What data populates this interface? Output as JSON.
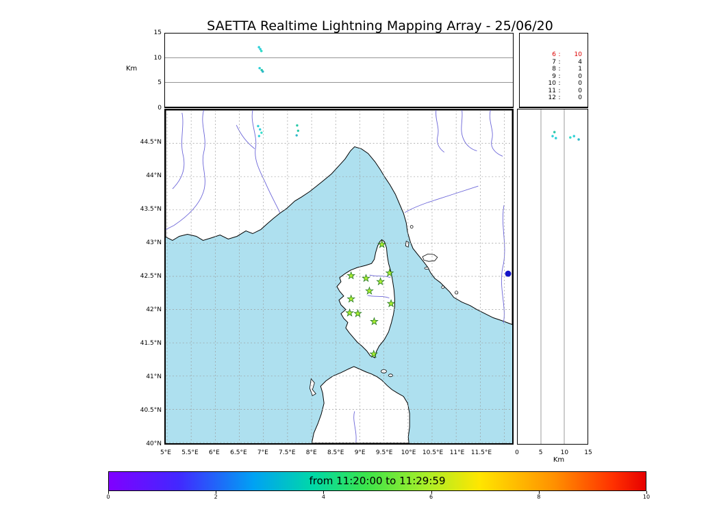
{
  "title": "SAETTA Realtime Lightning Mapping Array - 25/06/20",
  "colors": {
    "sea": "#aee0ef",
    "land": "#ffffff",
    "river": "#6a64d8",
    "station_fill": "#aaee33",
    "station_edge": "#227722",
    "highlight_red": "#dd0000",
    "extra_marker_blue": "#1414c8"
  },
  "chart_data": [
    {
      "type": "scatter",
      "panel": "altitude_vs_time",
      "ylabel": "Km",
      "ylim": [
        0,
        15
      ],
      "yticks": [
        15,
        10,
        5,
        0
      ],
      "gridlines_km": [
        5,
        10
      ],
      "points": [
        [
          0.27,
          12.2,
          "#2fd0d8"
        ],
        [
          0.274,
          11.8,
          "#2fd0d8"
        ],
        [
          0.277,
          11.4,
          "#35dcc8"
        ],
        [
          0.272,
          7.9,
          "#2fd0d8"
        ],
        [
          0.278,
          7.5,
          "#28c8a8"
        ],
        [
          0.281,
          7.2,
          "#30b8c8"
        ]
      ]
    },
    {
      "type": "table",
      "panel": "source_counts_by_min_stations",
      "description": "minimum contributing stations : source count",
      "sep": ":",
      "rows": [
        {
          "n": "6",
          "count": "10",
          "color": "#dd0000"
        },
        {
          "n": "7",
          "count": "4"
        },
        {
          "n": "8",
          "count": "1"
        },
        {
          "n": "9",
          "count": "0"
        },
        {
          "n": "10",
          "count": "0"
        },
        {
          "n": "11",
          "count": "0"
        },
        {
          "n": "12",
          "count": "0"
        }
      ]
    },
    {
      "type": "scatter",
      "panel": "map_lon_lat",
      "xlim": [
        5.0,
        12.17
      ],
      "ylim": [
        39.97,
        45.0
      ],
      "grid_step_deg": 0.5,
      "lat_tick_labels": [
        "44.5°N",
        "44°N",
        "43.5°N",
        "43°N",
        "42.5°N",
        "42°N",
        "41.5°N",
        "41°N",
        "40.5°N",
        "40°N"
      ],
      "lon_tick_labels": [
        "5°E",
        "5.5°E",
        "6°E",
        "6.5°E",
        "7°E",
        "7.5°E",
        "8°E",
        "8.5°E",
        "9°E",
        "9.5°E",
        "10°E",
        "10.5°E",
        "11°E",
        "11.5°E"
      ],
      "stations_lon_lat": [
        [
          9.46,
          42.98
        ],
        [
          8.82,
          42.51
        ],
        [
          9.13,
          42.47
        ],
        [
          9.43,
          42.42
        ],
        [
          9.62,
          42.55
        ],
        [
          9.2,
          42.28
        ],
        [
          8.82,
          42.16
        ],
        [
          9.65,
          42.09
        ],
        [
          8.79,
          41.95
        ],
        [
          8.96,
          41.94
        ],
        [
          9.3,
          41.82
        ],
        [
          9.29,
          41.33
        ]
      ],
      "sources": [
        [
          6.89,
          44.76,
          "#2fd0d8"
        ],
        [
          6.93,
          44.71,
          "#2fd0d8"
        ],
        [
          6.96,
          44.66,
          "#35dcc8"
        ],
        [
          6.91,
          44.61,
          "#2fd0d8"
        ],
        [
          7.7,
          44.77,
          "#28c8a8"
        ],
        [
          7.72,
          44.69,
          "#28c8a8"
        ],
        [
          7.69,
          44.62,
          "#30b8c8"
        ]
      ],
      "extra_marker": {
        "lon": 12.08,
        "lat": 42.54,
        "color": "#1414c8",
        "r": 4.5
      }
    },
    {
      "type": "scatter",
      "panel": "altitude_vs_latitude",
      "xlabel": "Km",
      "xlim": [
        0,
        15
      ],
      "xticks": [
        0,
        5,
        10,
        15
      ],
      "gridlines_km": [
        5,
        10
      ],
      "points": [
        [
          7.5,
          44.6,
          "#2fd0d8"
        ],
        [
          7.9,
          44.66,
          "#28c8a8"
        ],
        [
          8.2,
          44.57,
          "#2fd0d8"
        ],
        [
          11.3,
          44.58,
          "#35dcc8"
        ],
        [
          12.1,
          44.6,
          "#2fd0d8"
        ],
        [
          13.1,
          44.55,
          "#30b8c8"
        ]
      ]
    },
    {
      "type": "colorbar",
      "label": "from 11:20:00 to 11:29:59",
      "range": [
        0,
        10
      ],
      "ticks": [
        0,
        2,
        4,
        6,
        8,
        10
      ],
      "gradient": [
        "#8000ff 0%",
        "#4228ff 13%",
        "#00a2f3 27%",
        "#00d8a8 38%",
        "#3ce44b 48%",
        "#a8ee28 59%",
        "#ffe600 69%",
        "#ff9000 83%",
        "#ff3000 94%",
        "#e60000 100%"
      ]
    }
  ]
}
